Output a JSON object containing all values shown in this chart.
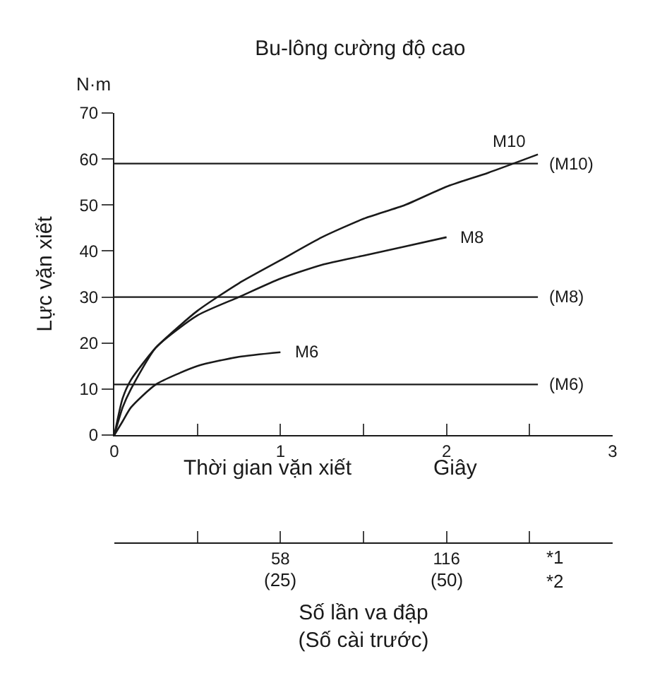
{
  "chart_data": {
    "type": "line",
    "title": "Bu-lông cường độ cao",
    "xlabel": "Thời gian vặn xiết",
    "ylabel": "Lực vặn xiết",
    "x2label": "Số lần va đập\n(Số cài trước)",
    "series": [
      {
        "name": "M10",
        "color": "#1a1a1a",
        "x": [
          0,
          0.05,
          0.1,
          0.25,
          0.5,
          0.75,
          1,
          1.25,
          1.5,
          1.75,
          2,
          2.25,
          2.55
        ],
        "values": [
          0,
          8,
          12,
          19,
          27,
          33,
          38,
          43,
          47,
          50,
          54,
          57,
          61
        ]
      },
      {
        "name": "M8",
        "color": "#1a1a1a",
        "x": [
          0,
          0.05,
          0.1,
          0.25,
          0.5,
          0.75,
          1,
          1.25,
          1.5,
          1.75,
          2
        ],
        "values": [
          0,
          6,
          10,
          19,
          26,
          30,
          34,
          37,
          39,
          41,
          43
        ]
      },
      {
        "name": "M6",
        "color": "#1a1a1a",
        "x": [
          0,
          0.05,
          0.1,
          0.25,
          0.5,
          0.75,
          1
        ],
        "values": [
          0,
          3,
          6,
          11,
          15,
          17,
          18
        ]
      }
    ],
    "xlim": [
      0,
      3
    ],
    "xticks": [
      0,
      {
        "value": 0.5,
        "label": null
      },
      1,
      {
        "value": 1.5,
        "label": null
      },
      2,
      {
        "value": 2.5,
        "label": null
      },
      3
    ],
    "ylim": [
      0,
      70
    ],
    "yticks": [
      0,
      10,
      20,
      30,
      40,
      50,
      60,
      70
    ],
    "x2lim": [
      0,
      174
    ],
    "x2ticks": [
      {
        "value": 29,
        "label": null
      },
      58,
      {
        "value": 87,
        "label": null
      },
      116,
      {
        "value": 145,
        "label": null
      }
    ],
    "ref_lines": [
      {
        "axis": "y",
        "value": 59,
        "label": "(M10)",
        "color": "#1a1a1a"
      },
      {
        "axis": "y",
        "value": 30,
        "label": "(M8)",
        "color": "#1a1a1a"
      },
      {
        "axis": "y",
        "value": 11,
        "label": "(M6)",
        "color": "#1a1a1a"
      }
    ],
    "annotations": [
      "N·m",
      "Giây",
      "*1\n*2",
      "(25)",
      "(50)"
    ],
    "legend": false,
    "marker": "none",
    "line_style": "solid"
  }
}
